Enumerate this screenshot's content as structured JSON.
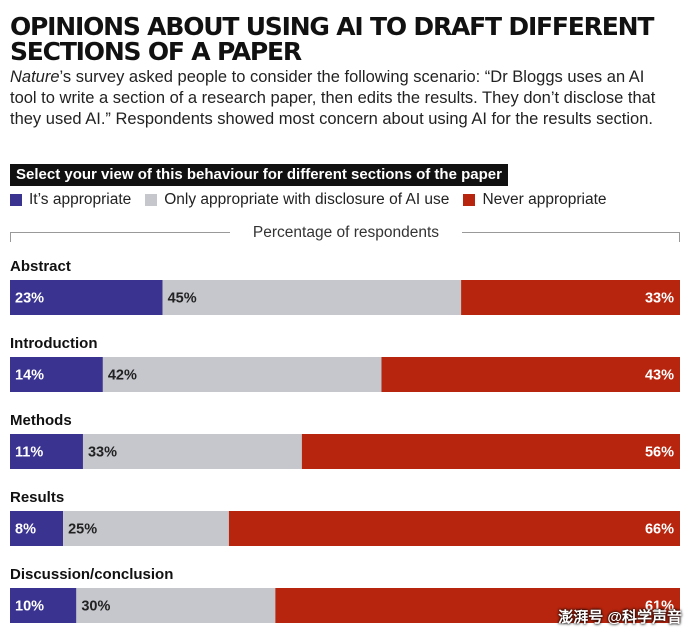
{
  "header": {
    "title": "OPINIONS ABOUT USING AI TO DRAFT DIFFERENT SECTIONS OF A PAPER",
    "subtitle_italic": "Nature",
    "subtitle_rest": "’s survey asked people to consider the following scenario: “Dr Bloggs uses an AI tool to write a section of a research paper, then edits the results. They don’t disclose that they used AI.” Respondents showed most concern about using AI for the results section."
  },
  "question": "Select your view of this behaviour for different sections of the paper",
  "watermark": "澎湃号 @科学声音",
  "chart_data": {
    "type": "bar",
    "orientation": "horizontal",
    "stacked": true,
    "xlabel": "Percentage of respondents",
    "categories": [
      "Abstract",
      "Introduction",
      "Methods",
      "Results",
      "Discussion/conclusion"
    ],
    "series": [
      {
        "name": "It’s appropriate",
        "color": "#3a3490",
        "values": [
          23,
          14,
          11,
          8,
          10
        ],
        "labels": [
          "23%",
          "14%",
          "11%",
          "8%",
          "10%"
        ]
      },
      {
        "name": "Only appropriate with disclosure of AI use",
        "color": "#c5c7cd",
        "values": [
          45,
          42,
          33,
          25,
          30
        ],
        "labels": [
          "45%",
          "42%",
          "33%",
          "25%",
          "30%"
        ]
      },
      {
        "name": "Never appropriate",
        "color": "#b8250e",
        "values": [
          33,
          43,
          56,
          66,
          61
        ],
        "labels": [
          "33%",
          "43%",
          "56%",
          "66%",
          "61%"
        ]
      }
    ],
    "xlim": [
      0,
      101
    ],
    "grid": false,
    "legend_position": "top-left"
  }
}
